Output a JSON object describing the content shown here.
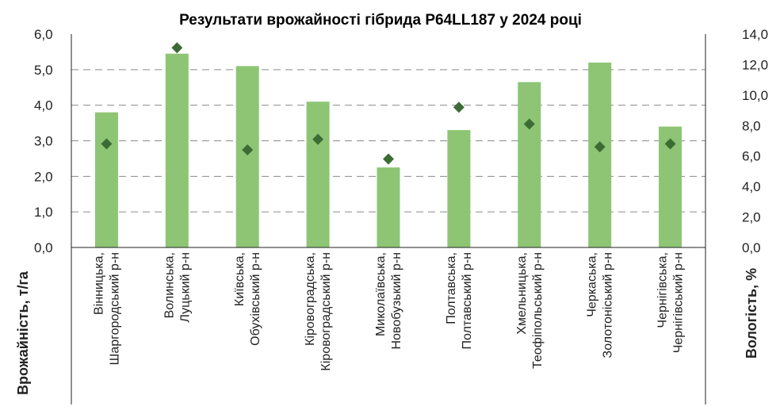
{
  "chart_data": {
    "type": "bar",
    "title": "Результати врожайності гібрида P64LL187 у 2024 році",
    "categories": [
      [
        "Вінницька,",
        "Шаргородський р-н"
      ],
      [
        "Волинська,",
        "Луцький р-н"
      ],
      [
        "Київська,",
        "Обухівський р-н"
      ],
      [
        "Кіровоградська,",
        "Кіровоградський р-н"
      ],
      [
        "Миколаївська,",
        "Новобузький р-н"
      ],
      [
        "Полтавська,",
        "Полтавський р-н"
      ],
      [
        "Хмельницька,",
        "Теофіпольський р-н"
      ],
      [
        "Черкаська,",
        "Золотоніський р-н"
      ],
      [
        "Чернігівська,",
        "Чернігівський р-н"
      ]
    ],
    "series": [
      {
        "axis": "left",
        "kind": "bar",
        "color": "#8dc574",
        "values": [
          3.8,
          5.45,
          5.1,
          4.1,
          2.25,
          3.3,
          4.65,
          5.2,
          3.4
        ]
      },
      {
        "axis": "right",
        "kind": "marker-diamond",
        "color": "#3d6b35",
        "values": [
          6.8,
          13.1,
          6.4,
          7.1,
          5.8,
          9.2,
          8.1,
          6.6,
          6.8
        ]
      }
    ],
    "ylabel": "Врожайність, т/га",
    "y2label": "Вологість, %",
    "ylim": [
      0,
      6
    ],
    "y2lim": [
      0,
      14
    ],
    "yticks": [
      "0,0",
      "1,0",
      "2,0",
      "3,0",
      "4,0",
      "5,0",
      "6,0"
    ],
    "y2ticks": [
      "0,0",
      "2,0",
      "4,0",
      "6,0",
      "8,0",
      "10,0",
      "12,0",
      "14,0"
    ],
    "grid": "horizontal-dashed",
    "legend": "none"
  }
}
